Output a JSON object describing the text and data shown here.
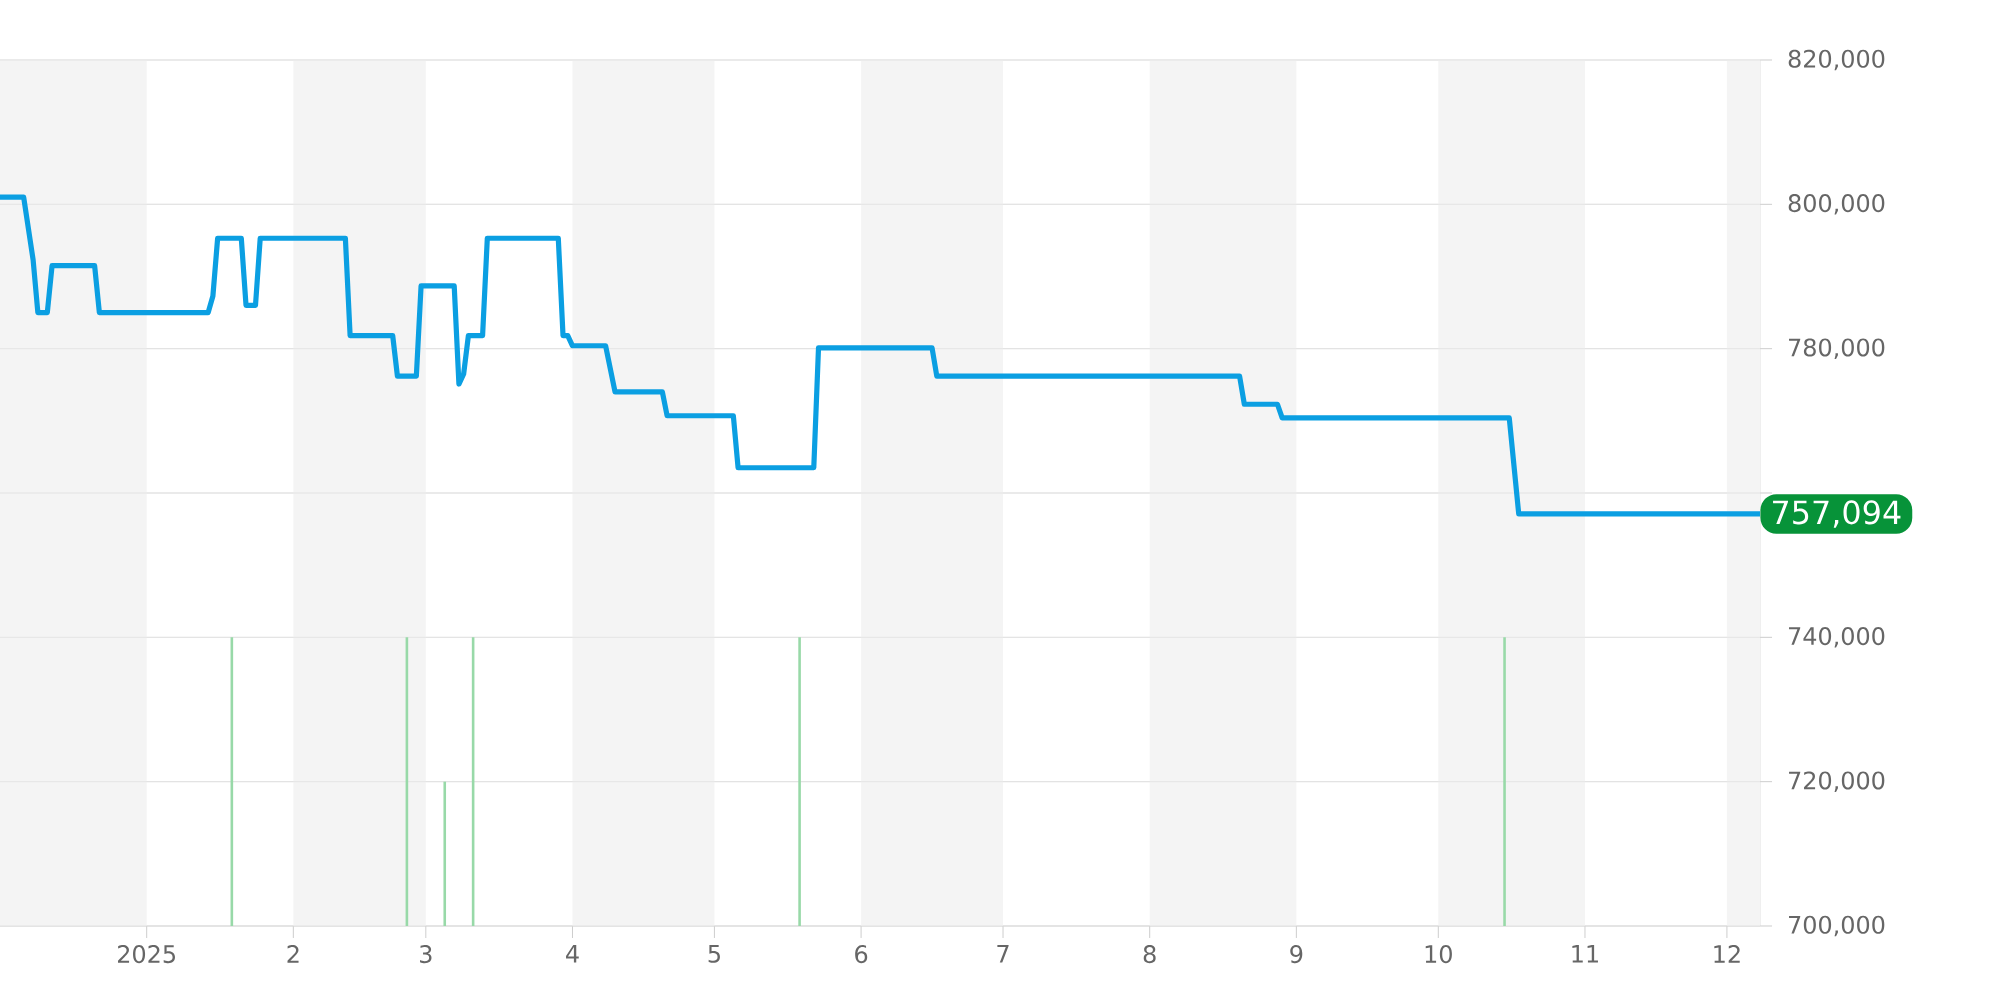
{
  "chart_data": {
    "type": "line",
    "x": [
      "2024-12-01",
      "2024-12-06",
      "2024-12-08",
      "2024-12-09",
      "2024-12-11",
      "2024-12-12",
      "2024-12-21",
      "2024-12-22",
      "2025-01-14",
      "2025-01-15",
      "2025-01-16",
      "2025-01-21",
      "2025-01-22",
      "2025-01-24",
      "2025-01-25",
      "2025-02-12",
      "2025-02-13",
      "2025-02-22",
      "2025-02-23",
      "2025-02-27",
      "2025-02-28",
      "2025-03-07",
      "2025-03-08",
      "2025-03-09",
      "2025-03-10",
      "2025-03-13",
      "2025-03-14",
      "2025-03-29",
      "2025-03-30",
      "2025-03-31",
      "2025-04-01",
      "2025-04-08",
      "2025-04-10",
      "2025-04-20",
      "2025-04-21",
      "2025-05-05",
      "2025-05-06",
      "2025-05-22",
      "2025-05-23",
      "2025-06-16",
      "2025-06-17",
      "2025-08-20",
      "2025-08-21",
      "2025-08-28",
      "2025-08-29",
      "2025-10-16",
      "2025-10-18",
      "2025-12-08"
    ],
    "series": [
      {
        "color": "#0b9fe2",
        "line_style": "solid",
        "values": [
          801000,
          801000,
          792300,
          785000,
          785000,
          791500,
          791500,
          785000,
          785000,
          787300,
          795300,
          795300,
          786000,
          786000,
          795300,
          795300,
          781800,
          781800,
          776200,
          776200,
          788700,
          788700,
          775100,
          776500,
          781800,
          781800,
          795300,
          795300,
          781800,
          781800,
          780400,
          780400,
          774000,
          774000,
          770700,
          770700,
          763500,
          763500,
          780100,
          780100,
          776200,
          776200,
          772300,
          772300,
          770400,
          770400,
          757094,
          757094
        ]
      },
      {
        "type": "bar",
        "color": "#98d9a8",
        "x": [
          "2025-01-19",
          "2025-02-25",
          "2025-03-05",
          "2025-03-11",
          "2025-05-19",
          "2025-10-15"
        ],
        "values": [
          740000,
          740000,
          720000,
          740000,
          740000,
          740000
        ]
      }
    ],
    "xlim": [
      "2024-12-01",
      "2025-12-08"
    ],
    "xticks": [
      {
        "value": "2025-01-01",
        "label": "2025"
      },
      {
        "value": "2025-02-01",
        "label": "2"
      },
      {
        "value": "2025-03-01",
        "label": "3"
      },
      {
        "value": "2025-04-01",
        "label": "4"
      },
      {
        "value": "2025-05-01",
        "label": "5"
      },
      {
        "value": "2025-06-01",
        "label": "6"
      },
      {
        "value": "2025-07-01",
        "label": "7"
      },
      {
        "value": "2025-08-01",
        "label": "8"
      },
      {
        "value": "2025-09-01",
        "label": "9"
      },
      {
        "value": "2025-10-01",
        "label": "10"
      },
      {
        "value": "2025-11-01",
        "label": "11"
      },
      {
        "value": "2025-12-01",
        "label": "12"
      }
    ],
    "ylim": [
      700000,
      820000
    ],
    "yticks": [
      {
        "value": 700000,
        "label": "700,000"
      },
      {
        "value": 720000,
        "label": "720,000"
      },
      {
        "value": 740000,
        "label": "740,000"
      },
      {
        "value": 760000,
        "label": null
      },
      {
        "value": 780000,
        "label": "780,000"
      },
      {
        "value": 800000,
        "label": "800,000"
      },
      {
        "value": 820000,
        "label": "820,000"
      }
    ],
    "grid": "y",
    "bands": [
      {
        "axis": "x",
        "from": "2024-12-01",
        "to": "2025-01-01",
        "color": "#f4f4f4"
      },
      {
        "axis": "x",
        "from": "2025-02-01",
        "to": "2025-03-01",
        "color": "#f4f4f4"
      },
      {
        "axis": "x",
        "from": "2025-04-01",
        "to": "2025-05-01",
        "color": "#f4f4f4"
      },
      {
        "axis": "x",
        "from": "2025-06-01",
        "to": "2025-07-01",
        "color": "#f4f4f4"
      },
      {
        "axis": "x",
        "from": "2025-08-01",
        "to": "2025-09-01",
        "color": "#f4f4f4"
      },
      {
        "axis": "x",
        "from": "2025-10-01",
        "to": "2025-11-01",
        "color": "#f4f4f4"
      },
      {
        "axis": "x",
        "from": "2025-12-01",
        "to": "2025-12-08",
        "color": "#f4f4f4"
      }
    ],
    "annotations": [
      {
        "text": "757,094",
        "x": "2025-12-08",
        "y": 757094
      }
    ]
  }
}
